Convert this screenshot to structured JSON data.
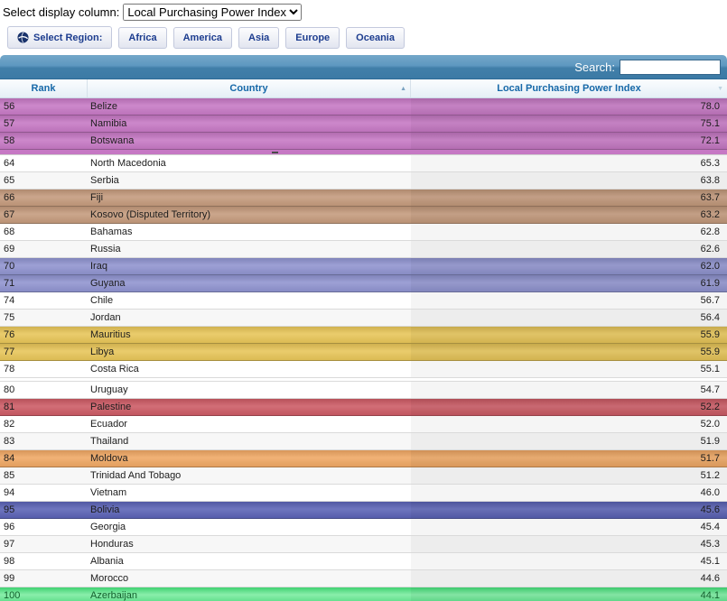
{
  "controls": {
    "display_column_label": "Select display column:",
    "display_column_value": "Local Purchasing Power Index",
    "region_button_label": "Select Region:",
    "regions": [
      "Africa",
      "America",
      "Asia",
      "Europe",
      "Oceania"
    ],
    "search_label": "Search:",
    "search_value": ""
  },
  "icons": {
    "globe": "globe-icon",
    "sort_asc": "▲",
    "sort_desc": "▼"
  },
  "colors": {
    "search_bar_top": "#74a7c9",
    "search_bar_bottom": "#3c7aa5",
    "header_text": "#1668a8",
    "button_text": "#1d3d8f",
    "highlight_purple": "#c678c4",
    "highlight_tan": "#c49a7c",
    "highlight_periwinkle": "#8f93cf",
    "highlight_yellow": "#e7c558",
    "highlight_red": "#cc5a64",
    "highlight_orange": "#efa763",
    "highlight_indigo": "#5a62b5",
    "highlight_green_gradient": [
      "#3fd272",
      "#8aeeab",
      "#55da83"
    ]
  },
  "table": {
    "columns": [
      "Rank",
      "Country",
      "Local Purchasing Power Index"
    ],
    "rows": [
      {
        "rank": "56",
        "country": "Belize",
        "value": "78.0",
        "hl": "#c678c4"
      },
      {
        "rank": "57",
        "country": "Namibia",
        "value": "75.1",
        "hl": "#c678c4"
      },
      {
        "rank": "58",
        "country": "Botswana",
        "value": "72.1",
        "hl": "#c678c4"
      },
      {
        "type": "partial",
        "hl": "#c678c4"
      },
      {
        "rank": "64",
        "country": "North Macedonia",
        "value": "65.3"
      },
      {
        "rank": "65",
        "country": "Serbia",
        "value": "63.8"
      },
      {
        "rank": "66",
        "country": "Fiji",
        "value": "63.7",
        "hl": "#c49a7c"
      },
      {
        "rank": "67",
        "country": "Kosovo (Disputed Territory)",
        "value": "63.2",
        "hl": "#c49a7c"
      },
      {
        "rank": "68",
        "country": "Bahamas",
        "value": "62.8"
      },
      {
        "rank": "69",
        "country": "Russia",
        "value": "62.6"
      },
      {
        "rank": "70",
        "country": "Iraq",
        "value": "62.0",
        "hl": "#8f93cf"
      },
      {
        "rank": "71",
        "country": "Guyana",
        "value": "61.9",
        "hl": "#8f93cf"
      },
      {
        "rank": "74",
        "country": "Chile",
        "value": "56.7"
      },
      {
        "rank": "75",
        "country": "Jordan",
        "value": "56.4"
      },
      {
        "rank": "76",
        "country": "Mauritius",
        "value": "55.9",
        "hl": "#e7c558"
      },
      {
        "rank": "77",
        "country": "Libya",
        "value": "55.9",
        "hl": "#e7c558"
      },
      {
        "rank": "78",
        "country": "Costa Rica",
        "value": "55.1"
      },
      {
        "type": "spacer"
      },
      {
        "rank": "80",
        "country": "Uruguay",
        "value": "54.7"
      },
      {
        "rank": "81",
        "country": "Palestine",
        "value": "52.2",
        "hl": "#cc5a64"
      },
      {
        "rank": "82",
        "country": "Ecuador",
        "value": "52.0"
      },
      {
        "rank": "83",
        "country": "Thailand",
        "value": "51.9"
      },
      {
        "rank": "84",
        "country": "Moldova",
        "value": "51.7",
        "hl": "#efa763"
      },
      {
        "rank": "85",
        "country": "Trinidad And Tobago",
        "value": "51.2"
      },
      {
        "rank": "94",
        "country": "Vietnam",
        "value": "46.0"
      },
      {
        "rank": "95",
        "country": "Bolivia",
        "value": "45.6",
        "hl": "#5a62b5"
      },
      {
        "rank": "96",
        "country": "Georgia",
        "value": "45.4"
      },
      {
        "rank": "97",
        "country": "Honduras",
        "value": "45.3"
      },
      {
        "rank": "98",
        "country": "Albania",
        "value": "45.1"
      },
      {
        "rank": "99",
        "country": "Morocco",
        "value": "44.6"
      },
      {
        "rank": "100",
        "country": "Azerbaijan",
        "value": "44.1",
        "hl_gradient": [
          "#3fd272",
          "#8aeeab",
          "#55da83"
        ],
        "text_color": "#14602e"
      }
    ]
  }
}
